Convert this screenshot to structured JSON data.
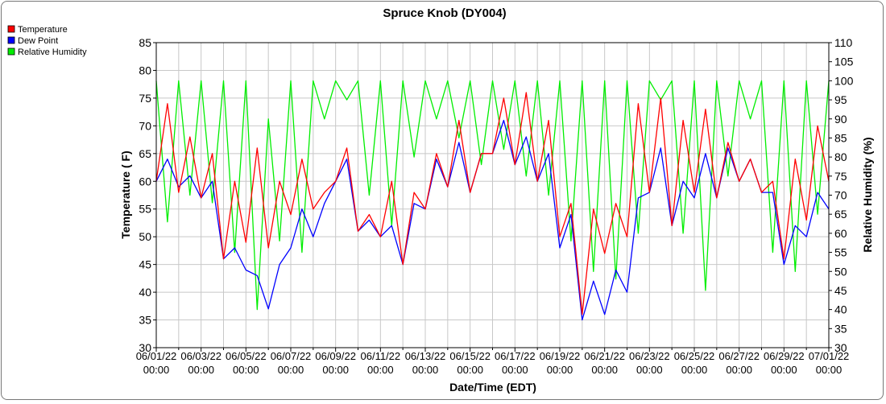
{
  "chart_data": {
    "type": "line",
    "title": "Spruce Knob (DY004)",
    "xlabel": "Date/Time (EDT)",
    "ylabel": "Temperature ( F)",
    "y2label": "Relative Humidity (%)",
    "ylim": [
      30,
      85
    ],
    "y2lim": [
      30,
      110
    ],
    "yticks": [
      30,
      35,
      40,
      45,
      50,
      55,
      60,
      65,
      70,
      75,
      80,
      85
    ],
    "y2ticks": [
      30,
      35,
      40,
      45,
      50,
      55,
      60,
      65,
      70,
      75,
      80,
      85,
      90,
      95,
      100,
      105,
      110
    ],
    "x_range": [
      "2022-06-01 00:00",
      "2022-07-01 00:00"
    ],
    "xticks": [
      {
        "date": "06/01/22",
        "time": "00:00"
      },
      {
        "date": "06/03/22",
        "time": "00:00"
      },
      {
        "date": "06/05/22",
        "time": "00:00"
      },
      {
        "date": "06/07/22",
        "time": "00:00"
      },
      {
        "date": "06/09/22",
        "time": "00:00"
      },
      {
        "date": "06/11/22",
        "time": "00:00"
      },
      {
        "date": "06/13/22",
        "time": "00:00"
      },
      {
        "date": "06/15/22",
        "time": "00:00"
      },
      {
        "date": "06/17/22",
        "time": "00:00"
      },
      {
        "date": "06/19/22",
        "time": "00:00"
      },
      {
        "date": "06/21/22",
        "time": "00:00"
      },
      {
        "date": "06/23/22",
        "time": "00:00"
      },
      {
        "date": "06/25/22",
        "time": "00:00"
      },
      {
        "date": "06/27/22",
        "time": "00:00"
      },
      {
        "date": "06/29/22",
        "time": "00:00"
      },
      {
        "date": "07/01/22",
        "time": "00:00"
      }
    ],
    "grid": true,
    "legend_position": "top-left",
    "series": [
      {
        "name": "Temperature",
        "color": "#ff0000",
        "axis": "left",
        "x": [
          "2022-06-01 00:00",
          "2022-06-01 12:00",
          "2022-06-02 00:00",
          "2022-06-02 12:00",
          "2022-06-03 00:00",
          "2022-06-03 12:00",
          "2022-06-04 00:00",
          "2022-06-04 12:00",
          "2022-06-05 00:00",
          "2022-06-05 12:00",
          "2022-06-06 00:00",
          "2022-06-06 12:00",
          "2022-06-07 00:00",
          "2022-06-07 12:00",
          "2022-06-08 00:00",
          "2022-06-08 12:00",
          "2022-06-09 00:00",
          "2022-06-09 12:00",
          "2022-06-10 00:00",
          "2022-06-10 12:00",
          "2022-06-11 00:00",
          "2022-06-11 12:00",
          "2022-06-12 00:00",
          "2022-06-12 12:00",
          "2022-06-13 00:00",
          "2022-06-13 12:00",
          "2022-06-14 00:00",
          "2022-06-14 12:00",
          "2022-06-15 00:00",
          "2022-06-15 12:00",
          "2022-06-16 00:00",
          "2022-06-16 12:00",
          "2022-06-17 00:00",
          "2022-06-17 12:00",
          "2022-06-18 00:00",
          "2022-06-18 12:00",
          "2022-06-19 00:00",
          "2022-06-19 12:00",
          "2022-06-20 00:00",
          "2022-06-20 12:00",
          "2022-06-21 00:00",
          "2022-06-21 12:00",
          "2022-06-22 00:00",
          "2022-06-22 12:00",
          "2022-06-23 00:00",
          "2022-06-23 12:00",
          "2022-06-24 00:00",
          "2022-06-24 12:00",
          "2022-06-25 00:00",
          "2022-06-25 12:00",
          "2022-06-26 00:00",
          "2022-06-26 12:00",
          "2022-06-27 00:00",
          "2022-06-27 12:00",
          "2022-06-28 00:00",
          "2022-06-28 12:00",
          "2022-06-29 00:00",
          "2022-06-29 12:00",
          "2022-06-30 00:00",
          "2022-06-30 12:00",
          "2022-07-01 00:00"
        ],
        "values": [
          60,
          74,
          58,
          68,
          57,
          65,
          46,
          60,
          49,
          66,
          48,
          60,
          54,
          64,
          55,
          58,
          60,
          66,
          51,
          54,
          50,
          60,
          45,
          58,
          55,
          65,
          59,
          71,
          58,
          65,
          65,
          75,
          63,
          76,
          60,
          71,
          50,
          56,
          36,
          55,
          47,
          56,
          50,
          74,
          58,
          75,
          52,
          71,
          58,
          73,
          57,
          67,
          60,
          64,
          58,
          60,
          46,
          64,
          53,
          70,
          60
        ]
      },
      {
        "name": "Dew Point",
        "color": "#0000ff",
        "axis": "left",
        "x": [
          "2022-06-01 00:00",
          "2022-06-01 12:00",
          "2022-06-02 00:00",
          "2022-06-02 12:00",
          "2022-06-03 00:00",
          "2022-06-03 12:00",
          "2022-06-04 00:00",
          "2022-06-04 12:00",
          "2022-06-05 00:00",
          "2022-06-05 12:00",
          "2022-06-06 00:00",
          "2022-06-06 12:00",
          "2022-06-07 00:00",
          "2022-06-07 12:00",
          "2022-06-08 00:00",
          "2022-06-08 12:00",
          "2022-06-09 00:00",
          "2022-06-09 12:00",
          "2022-06-10 00:00",
          "2022-06-10 12:00",
          "2022-06-11 00:00",
          "2022-06-11 12:00",
          "2022-06-12 00:00",
          "2022-06-12 12:00",
          "2022-06-13 00:00",
          "2022-06-13 12:00",
          "2022-06-14 00:00",
          "2022-06-14 12:00",
          "2022-06-15 00:00",
          "2022-06-15 12:00",
          "2022-06-16 00:00",
          "2022-06-16 12:00",
          "2022-06-17 00:00",
          "2022-06-17 12:00",
          "2022-06-18 00:00",
          "2022-06-18 12:00",
          "2022-06-19 00:00",
          "2022-06-19 12:00",
          "2022-06-20 00:00",
          "2022-06-20 12:00",
          "2022-06-21 00:00",
          "2022-06-21 12:00",
          "2022-06-22 00:00",
          "2022-06-22 12:00",
          "2022-06-23 00:00",
          "2022-06-23 12:00",
          "2022-06-24 00:00",
          "2022-06-24 12:00",
          "2022-06-25 00:00",
          "2022-06-25 12:00",
          "2022-06-26 00:00",
          "2022-06-26 12:00",
          "2022-06-27 00:00",
          "2022-06-27 12:00",
          "2022-06-28 00:00",
          "2022-06-28 12:00",
          "2022-06-29 00:00",
          "2022-06-29 12:00",
          "2022-06-30 00:00",
          "2022-06-30 12:00",
          "2022-07-01 00:00"
        ],
        "values": [
          60,
          64,
          59,
          61,
          57,
          60,
          46,
          48,
          44,
          43,
          37,
          45,
          48,
          55,
          50,
          56,
          60,
          64,
          51,
          53,
          50,
          52,
          45,
          56,
          55,
          64,
          59,
          67,
          58,
          65,
          65,
          71,
          63,
          68,
          60,
          65,
          48,
          54,
          35,
          42,
          36,
          44,
          40,
          57,
          58,
          66,
          52,
          60,
          57,
          65,
          57,
          66,
          60,
          64,
          58,
          58,
          45,
          52,
          50,
          58,
          55
        ]
      },
      {
        "name": "Relative Humidity",
        "color": "#00ee00",
        "axis": "right",
        "x": [
          "2022-06-01 00:00",
          "2022-06-01 12:00",
          "2022-06-02 00:00",
          "2022-06-02 12:00",
          "2022-06-03 00:00",
          "2022-06-03 12:00",
          "2022-06-04 00:00",
          "2022-06-04 12:00",
          "2022-06-05 00:00",
          "2022-06-05 12:00",
          "2022-06-06 00:00",
          "2022-06-06 12:00",
          "2022-06-07 00:00",
          "2022-06-07 12:00",
          "2022-06-08 00:00",
          "2022-06-08 12:00",
          "2022-06-09 00:00",
          "2022-06-09 12:00",
          "2022-06-10 00:00",
          "2022-06-10 12:00",
          "2022-06-11 00:00",
          "2022-06-11 12:00",
          "2022-06-12 00:00",
          "2022-06-12 12:00",
          "2022-06-13 00:00",
          "2022-06-13 12:00",
          "2022-06-14 00:00",
          "2022-06-14 12:00",
          "2022-06-15 00:00",
          "2022-06-15 12:00",
          "2022-06-16 00:00",
          "2022-06-16 12:00",
          "2022-06-17 00:00",
          "2022-06-17 12:00",
          "2022-06-18 00:00",
          "2022-06-18 12:00",
          "2022-06-19 00:00",
          "2022-06-19 12:00",
          "2022-06-20 00:00",
          "2022-06-20 12:00",
          "2022-06-21 00:00",
          "2022-06-21 12:00",
          "2022-06-22 00:00",
          "2022-06-22 12:00",
          "2022-06-23 00:00",
          "2022-06-23 12:00",
          "2022-06-24 00:00",
          "2022-06-24 12:00",
          "2022-06-25 00:00",
          "2022-06-25 12:00",
          "2022-06-26 00:00",
          "2022-06-26 12:00",
          "2022-06-27 00:00",
          "2022-06-27 12:00",
          "2022-06-28 00:00",
          "2022-06-28 12:00",
          "2022-06-29 00:00",
          "2022-06-29 12:00",
          "2022-06-30 00:00",
          "2022-06-30 12:00",
          "2022-07-01 00:00"
        ],
        "values": [
          100,
          63,
          100,
          70,
          100,
          68,
          100,
          55,
          100,
          40,
          90,
          58,
          100,
          55,
          100,
          90,
          100,
          95,
          100,
          70,
          100,
          62,
          100,
          80,
          100,
          90,
          100,
          85,
          100,
          78,
          100,
          82,
          100,
          75,
          100,
          70,
          100,
          58,
          100,
          50,
          100,
          48,
          100,
          60,
          100,
          95,
          100,
          60,
          100,
          45,
          100,
          75,
          100,
          90,
          100,
          55,
          100,
          50,
          100,
          65,
          100
        ]
      }
    ]
  }
}
